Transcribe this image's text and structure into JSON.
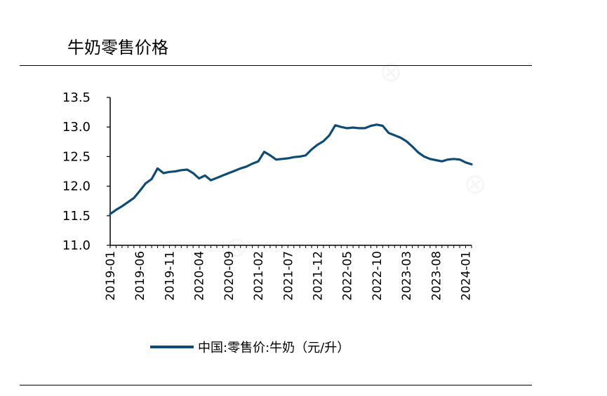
{
  "title": "牛奶零售价格",
  "colors": {
    "line": "#0f4c75",
    "axis": "#000000",
    "rule": "#000000"
  },
  "watermark_icon": "hanghangcha-watermark-icon",
  "chart_data": {
    "type": "line",
    "title": "",
    "xlabel": "",
    "ylabel": "",
    "ylim": [
      11.0,
      13.5
    ],
    "yticks": [
      "11.0",
      "11.5",
      "12.0",
      "12.5",
      "13.0",
      "13.5"
    ],
    "xticks": [
      "2019-01",
      "2019-06",
      "2019-11",
      "2020-04",
      "2020-09",
      "2021-02",
      "2021-07",
      "2021-12",
      "2022-05",
      "2022-10",
      "2023-03",
      "2023-08",
      "2024-01"
    ],
    "grid": false,
    "legend_position": "bottom",
    "series": [
      {
        "name": "中国:零售价:牛奶（元/升）",
        "x": [
          "2019-01",
          "2019-02",
          "2019-03",
          "2019-04",
          "2019-05",
          "2019-06",
          "2019-07",
          "2019-08",
          "2019-09",
          "2019-10",
          "2019-11",
          "2019-12",
          "2020-01",
          "2020-02",
          "2020-03",
          "2020-04",
          "2020-05",
          "2020-06",
          "2020-07",
          "2020-08",
          "2020-09",
          "2020-10",
          "2020-11",
          "2020-12",
          "2021-01",
          "2021-02",
          "2021-03",
          "2021-04",
          "2021-05",
          "2021-06",
          "2021-07",
          "2021-08",
          "2021-09",
          "2021-10",
          "2021-11",
          "2021-12",
          "2022-01",
          "2022-02",
          "2022-03",
          "2022-04",
          "2022-05",
          "2022-06",
          "2022-07",
          "2022-08",
          "2022-09",
          "2022-10",
          "2022-11",
          "2022-12",
          "2023-01",
          "2023-02",
          "2023-03",
          "2023-04",
          "2023-05",
          "2023-06",
          "2023-07",
          "2023-08",
          "2023-09",
          "2023-10",
          "2023-11",
          "2023-12",
          "2024-01",
          "2024-02"
        ],
        "values": [
          11.53,
          11.6,
          11.66,
          11.73,
          11.8,
          11.92,
          12.05,
          12.12,
          12.3,
          12.22,
          12.24,
          12.25,
          12.27,
          12.28,
          12.22,
          12.13,
          12.18,
          12.1,
          12.14,
          12.18,
          12.22,
          12.26,
          12.3,
          12.33,
          12.38,
          12.42,
          12.58,
          12.52,
          12.45,
          12.46,
          12.47,
          12.49,
          12.5,
          12.52,
          12.62,
          12.7,
          12.76,
          12.86,
          13.03,
          13.0,
          12.98,
          12.99,
          12.98,
          12.98,
          13.02,
          13.04,
          13.02,
          12.9,
          12.86,
          12.82,
          12.76,
          12.67,
          12.57,
          12.5,
          12.46,
          12.44,
          12.42,
          12.45,
          12.46,
          12.45,
          12.4,
          12.37
        ]
      }
    ]
  }
}
